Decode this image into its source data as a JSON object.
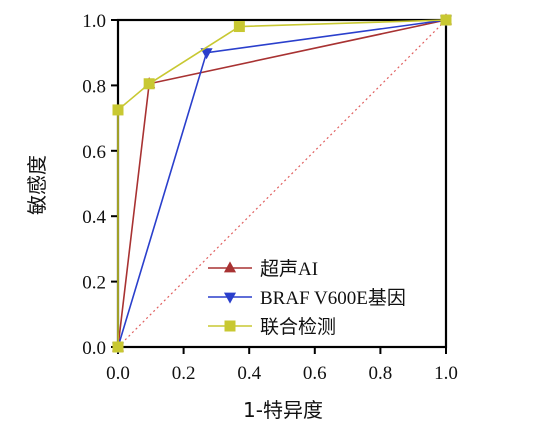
{
  "chart_data": {
    "type": "line",
    "title": "",
    "xlabel": "1-特异度",
    "ylabel": "敏感度",
    "xlim": [
      0,
      1
    ],
    "ylim": [
      0,
      1
    ],
    "x_ticks": [
      "0.0",
      "0.2",
      "0.4",
      "0.6",
      "0.8",
      "1.0"
    ],
    "y_ticks": [
      "0.0",
      "0.2",
      "0.4",
      "0.6",
      "0.8",
      "1.0"
    ],
    "grid": false,
    "legend_position": "lower-right",
    "reference_line": {
      "x": [
        0,
        1
      ],
      "y": [
        0,
        1
      ],
      "color": "#e06060",
      "style": "dotted"
    },
    "series": [
      {
        "name": "超声AI",
        "color": "#a83232",
        "marker": "triangle-up",
        "x": [
          0,
          0.095,
          1
        ],
        "y": [
          0,
          0.805,
          1
        ]
      },
      {
        "name": "BRAF V600E基因",
        "color": "#2a3fcc",
        "marker": "triangle-down",
        "x": [
          0,
          0.27,
          1
        ],
        "y": [
          0,
          0.9,
          1
        ]
      },
      {
        "name": "联合检测",
        "color": "#c8c832",
        "marker": "square",
        "x": [
          0,
          0,
          0.095,
          0.37,
          1
        ],
        "y": [
          0,
          0.725,
          0.805,
          0.98,
          1
        ]
      }
    ]
  }
}
